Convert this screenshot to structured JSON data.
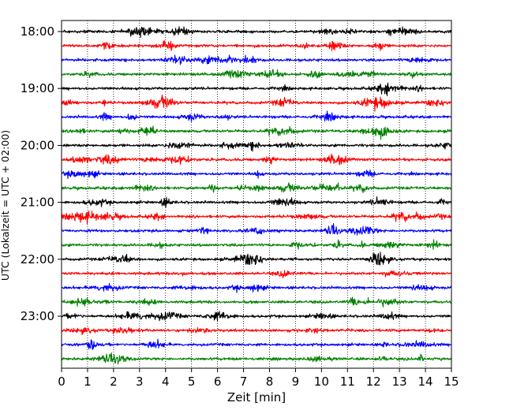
{
  "chart_data": {
    "type": "line",
    "title": "",
    "xlabel": "Zeit  [min]",
    "ylabel": "UTC (Lokalzeit = UTC + 02:00)",
    "xlim": [
      0,
      15
    ],
    "x_ticks": [
      0,
      1,
      2,
      3,
      4,
      5,
      6,
      7,
      8,
      9,
      10,
      11,
      12,
      13,
      14,
      15
    ],
    "x_grid": true,
    "y_ticks": [
      "18:00",
      "19:00",
      "20:00",
      "21:00",
      "22:00",
      "23:00"
    ],
    "traces_per_hour": 4,
    "trace_colors": [
      "#000000",
      "#ff0000",
      "#0000ff",
      "#008000"
    ],
    "traces": [
      {
        "start": "18:00",
        "color": "#000000"
      },
      {
        "start": "18:15",
        "color": "#ff0000"
      },
      {
        "start": "18:30",
        "color": "#0000ff"
      },
      {
        "start": "18:45",
        "color": "#008000"
      },
      {
        "start": "19:00",
        "color": "#000000"
      },
      {
        "start": "19:15",
        "color": "#ff0000"
      },
      {
        "start": "19:30",
        "color": "#0000ff"
      },
      {
        "start": "19:45",
        "color": "#008000"
      },
      {
        "start": "20:00",
        "color": "#000000"
      },
      {
        "start": "20:15",
        "color": "#ff0000"
      },
      {
        "start": "20:30",
        "color": "#0000ff"
      },
      {
        "start": "20:45",
        "color": "#008000"
      },
      {
        "start": "21:00",
        "color": "#000000"
      },
      {
        "start": "21:15",
        "color": "#ff0000"
      },
      {
        "start": "21:30",
        "color": "#0000ff"
      },
      {
        "start": "21:45",
        "color": "#008000"
      },
      {
        "start": "22:00",
        "color": "#000000"
      },
      {
        "start": "22:15",
        "color": "#ff0000"
      },
      {
        "start": "22:30",
        "color": "#0000ff"
      },
      {
        "start": "22:45",
        "color": "#008000"
      },
      {
        "start": "23:00",
        "color": "#000000"
      },
      {
        "start": "23:15",
        "color": "#ff0000"
      },
      {
        "start": "23:30",
        "color": "#0000ff"
      },
      {
        "start": "23:45",
        "color": "#008000"
      }
    ]
  }
}
